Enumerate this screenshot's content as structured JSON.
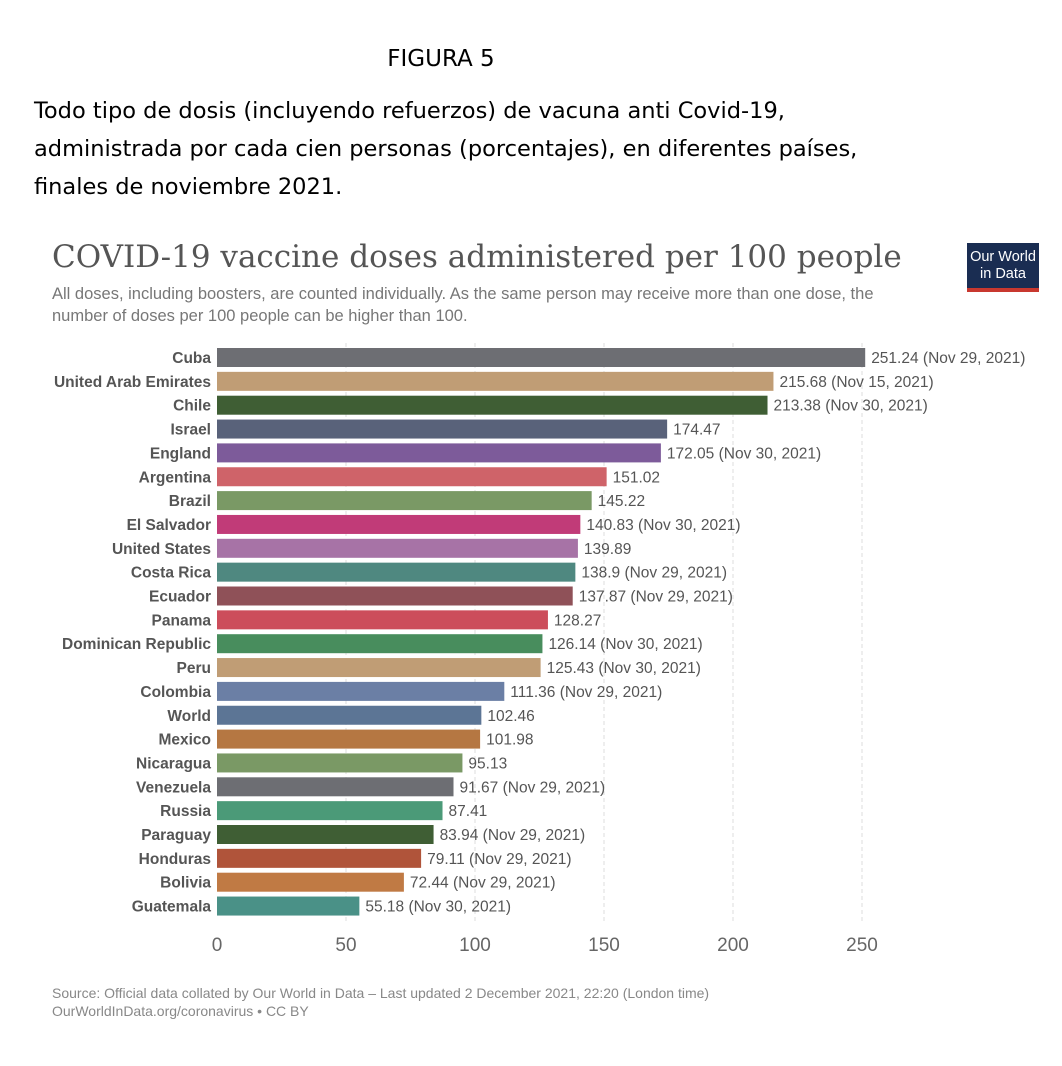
{
  "figure_label": "FIGURA 5",
  "caption": {
    "line1": "Todo tipo de dosis (incluyendo refuerzos) de vacuna anti Covid-19,",
    "line2": "administrada por cada cien personas (porcentajes), en diferentes países,",
    "line3": "finales de noviembre 2021."
  },
  "logo": {
    "line1": "Our World",
    "line2": "in Data"
  },
  "source": {
    "line1": "Source: Official data collated by Our World in Data – Last updated 2 December 2021, 22:20 (London time)",
    "line2": "OurWorldInData.org/coronavirus • CC BY"
  },
  "chart_data": {
    "type": "bar",
    "orientation": "horizontal",
    "title": "COVID-19 vaccine doses administered per 100 people",
    "subtitle_line1": "All doses, including boosters, are counted individually. As the same person may receive more than one dose, the",
    "subtitle_line2": "number of doses per 100 people can be higher than 100.",
    "xlim": [
      0,
      250
    ],
    "xticks": [
      0,
      50,
      100,
      150,
      200,
      250
    ],
    "grid": "vertical dashed",
    "categories": [
      "Cuba",
      "United Arab Emirates",
      "Chile",
      "Israel",
      "England",
      "Argentina",
      "Brazil",
      "El Salvador",
      "United States",
      "Costa Rica",
      "Ecuador",
      "Panama",
      "Dominican Republic",
      "Peru",
      "Colombia",
      "World",
      "Mexico",
      "Nicaragua",
      "Venezuela",
      "Russia",
      "Paraguay",
      "Honduras",
      "Bolivia",
      "Guatemala"
    ],
    "values": [
      251.24,
      215.68,
      213.38,
      174.47,
      172.05,
      151.02,
      145.22,
      140.83,
      139.89,
      138.9,
      137.87,
      128.27,
      126.14,
      125.43,
      111.36,
      102.46,
      101.98,
      95.13,
      91.67,
      87.41,
      83.94,
      79.11,
      72.44,
      55.18
    ],
    "value_labels": [
      "251.24 (Nov 29, 2021)",
      "215.68 (Nov 15, 2021)",
      "213.38 (Nov 30, 2021)",
      "174.47",
      "172.05 (Nov 30, 2021)",
      "151.02",
      "145.22",
      "140.83 (Nov 30, 2021)",
      "139.89",
      "138.9 (Nov 29, 2021)",
      "137.87 (Nov 29, 2021)",
      "128.27",
      "126.14 (Nov 30, 2021)",
      "125.43 (Nov 30, 2021)",
      "111.36 (Nov 29, 2021)",
      "102.46",
      "101.98",
      "95.13",
      "91.67 (Nov 29, 2021)",
      "87.41",
      "83.94 (Nov 29, 2021)",
      "79.11 (Nov 29, 2021)",
      "72.44 (Nov 29, 2021)",
      "55.18 (Nov 30, 2021)"
    ],
    "colors": [
      "#6d6e73",
      "#c09d75",
      "#3f5e34",
      "#59627a",
      "#7d5b9a",
      "#cf6369",
      "#7a9965",
      "#c13b78",
      "#a773a6",
      "#4f8880",
      "#8f5158",
      "#cc4d5b",
      "#488d5d",
      "#c09d75",
      "#6b7fa5",
      "#5c7595",
      "#b57742",
      "#7a9965",
      "#6d6e73",
      "#4b9a78",
      "#3f5e34",
      "#b0543a",
      "#c07a44",
      "#4a9187"
    ]
  }
}
